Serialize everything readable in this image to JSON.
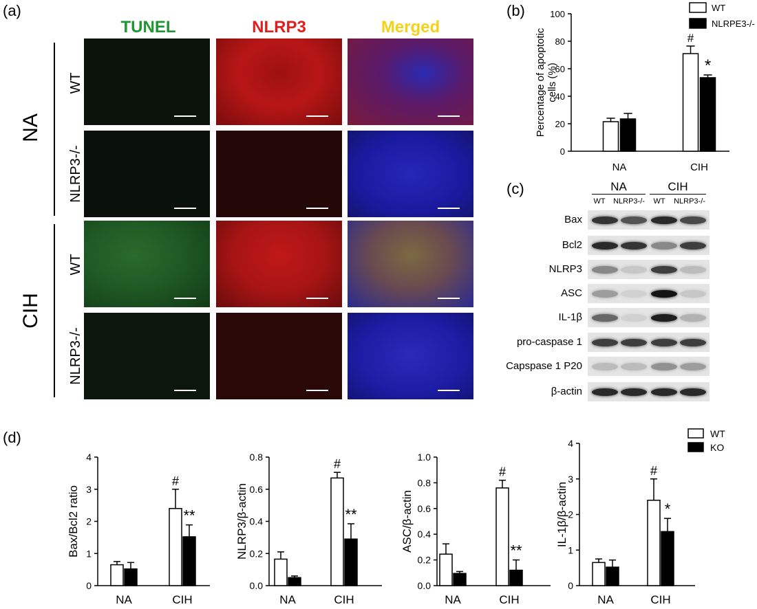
{
  "panels": {
    "a": "(a)",
    "b": "(b)",
    "c": "(c)",
    "d": "(d)"
  },
  "panel_a": {
    "col_headers": [
      {
        "text": "TUNEL",
        "color": "#1e9632"
      },
      {
        "text": "NLRP3",
        "color": "#e01e1e"
      },
      {
        "text": "Merged",
        "color": "#f2d21a"
      }
    ],
    "groups": [
      "NA",
      "CIH"
    ],
    "rows": [
      "WT",
      "NLRP3-/-",
      "WT",
      "NLRP3-/-"
    ],
    "tile_colors": {
      "tunel_dim": "#0a130a",
      "tunel_bright": "#1f5a24",
      "nlrp3_bright": "#b81616",
      "nlrp3_dim": "#2a0808",
      "merged_red": "#6a1a3a",
      "merged_blue": "#1a1aa0",
      "merged_mix": "#6a5a3a"
    }
  },
  "chart_data": [
    {
      "id": "b",
      "type": "bar",
      "categories": [
        "NA",
        "CIH"
      ],
      "series": [
        {
          "name": "WT",
          "values": [
            21.5,
            71
          ],
          "errors": [
            2.5,
            5.5
          ]
        },
        {
          "name": "NLRPE3-/-",
          "values": [
            23.5,
            53.5
          ],
          "errors": [
            4,
            2
          ]
        }
      ],
      "ylabel": "Percentage of apoptotic cells (%)",
      "ylim": [
        0,
        100
      ],
      "yticks": [
        "0",
        "20",
        "40",
        "60",
        "80",
        "100"
      ],
      "annotations": [
        "#",
        "*"
      ],
      "legend": "top-right"
    },
    {
      "id": "d1",
      "type": "bar",
      "categories": [
        "NA",
        "CIH"
      ],
      "series": [
        {
          "name": "WT",
          "values": [
            0.65,
            2.4
          ],
          "errors": [
            0.1,
            0.6
          ]
        },
        {
          "name": "KO",
          "values": [
            0.52,
            1.52
          ],
          "errors": [
            0.2,
            0.37
          ]
        }
      ],
      "ylabel": "Bax/Bcl2 ratio",
      "ylim": [
        0,
        4
      ],
      "yticks": [
        "0",
        "1",
        "2",
        "3",
        "4"
      ],
      "annotations": [
        "#",
        "**"
      ]
    },
    {
      "id": "d2",
      "type": "bar",
      "categories": [
        "NA",
        "CIH"
      ],
      "series": [
        {
          "name": "WT",
          "values": [
            0.165,
            0.67
          ],
          "errors": [
            0.045,
            0.035
          ]
        },
        {
          "name": "KO",
          "values": [
            0.05,
            0.29
          ],
          "errors": [
            0.01,
            0.095
          ]
        }
      ],
      "ylabel": "NLRP3/β-actin",
      "ylim": [
        0,
        0.8
      ],
      "yticks": [
        "0.0",
        "0.2",
        "0.4",
        "0.6",
        "0.8"
      ],
      "annotations": [
        "#",
        "**"
      ]
    },
    {
      "id": "d3",
      "type": "bar",
      "categories": [
        "NA",
        "CIH"
      ],
      "series": [
        {
          "name": "WT",
          "values": [
            0.245,
            0.76
          ],
          "errors": [
            0.08,
            0.06
          ]
        },
        {
          "name": "KO",
          "values": [
            0.095,
            0.12
          ],
          "errors": [
            0.015,
            0.08
          ]
        }
      ],
      "ylabel": "ASC/β-actin",
      "ylim": [
        0,
        1.0
      ],
      "yticks": [
        "0.0",
        "0.2",
        "0.4",
        "0.6",
        "0.8",
        "1.0"
      ],
      "annotations": [
        "#",
        "**"
      ]
    },
    {
      "id": "d4",
      "type": "bar",
      "categories": [
        "NA",
        "CIH"
      ],
      "series": [
        {
          "name": "WT",
          "values": [
            0.65,
            2.4
          ],
          "errors": [
            0.1,
            0.6
          ]
        },
        {
          "name": "KO",
          "values": [
            0.52,
            1.52
          ],
          "errors": [
            0.2,
            0.37
          ]
        }
      ],
      "ylabel": "IL-1β/β-actin",
      "ylim": [
        0,
        4
      ],
      "yticks": [
        "0",
        "1",
        "2",
        "3",
        "4"
      ],
      "annotations": [
        "#",
        "*"
      ],
      "legend": "top-right"
    }
  ],
  "legend_b": {
    "wt": "WT",
    "ko": "NLRPE3-/-"
  },
  "legend_d": {
    "wt": "WT",
    "ko": "KO"
  },
  "panel_c": {
    "groups": [
      "NA",
      "CIH"
    ],
    "lanes": [
      "WT",
      "NLRP3-/-",
      "WT",
      "NLRP3-/-"
    ],
    "blots": [
      {
        "label": "Bax",
        "intensity": [
          0.85,
          0.7,
          0.9,
          0.75
        ]
      },
      {
        "label": "Bcl2",
        "intensity": [
          0.9,
          0.85,
          0.45,
          0.8
        ]
      },
      {
        "label": "NLRP3",
        "intensity": [
          0.45,
          0.15,
          0.8,
          0.2
        ]
      },
      {
        "label": "ASC",
        "intensity": [
          0.35,
          0.1,
          1.0,
          0.15
        ]
      },
      {
        "label": "IL-1β",
        "intensity": [
          0.6,
          0.1,
          0.95,
          0.25
        ]
      },
      {
        "label": "pro-caspase 1",
        "intensity": [
          0.8,
          0.8,
          0.8,
          0.8
        ]
      },
      {
        "label": "Capspase 1 P20",
        "intensity": [
          0.2,
          0.2,
          0.4,
          0.35
        ]
      },
      {
        "label": "β-actin",
        "intensity": [
          0.9,
          0.9,
          0.9,
          0.9
        ]
      }
    ]
  }
}
